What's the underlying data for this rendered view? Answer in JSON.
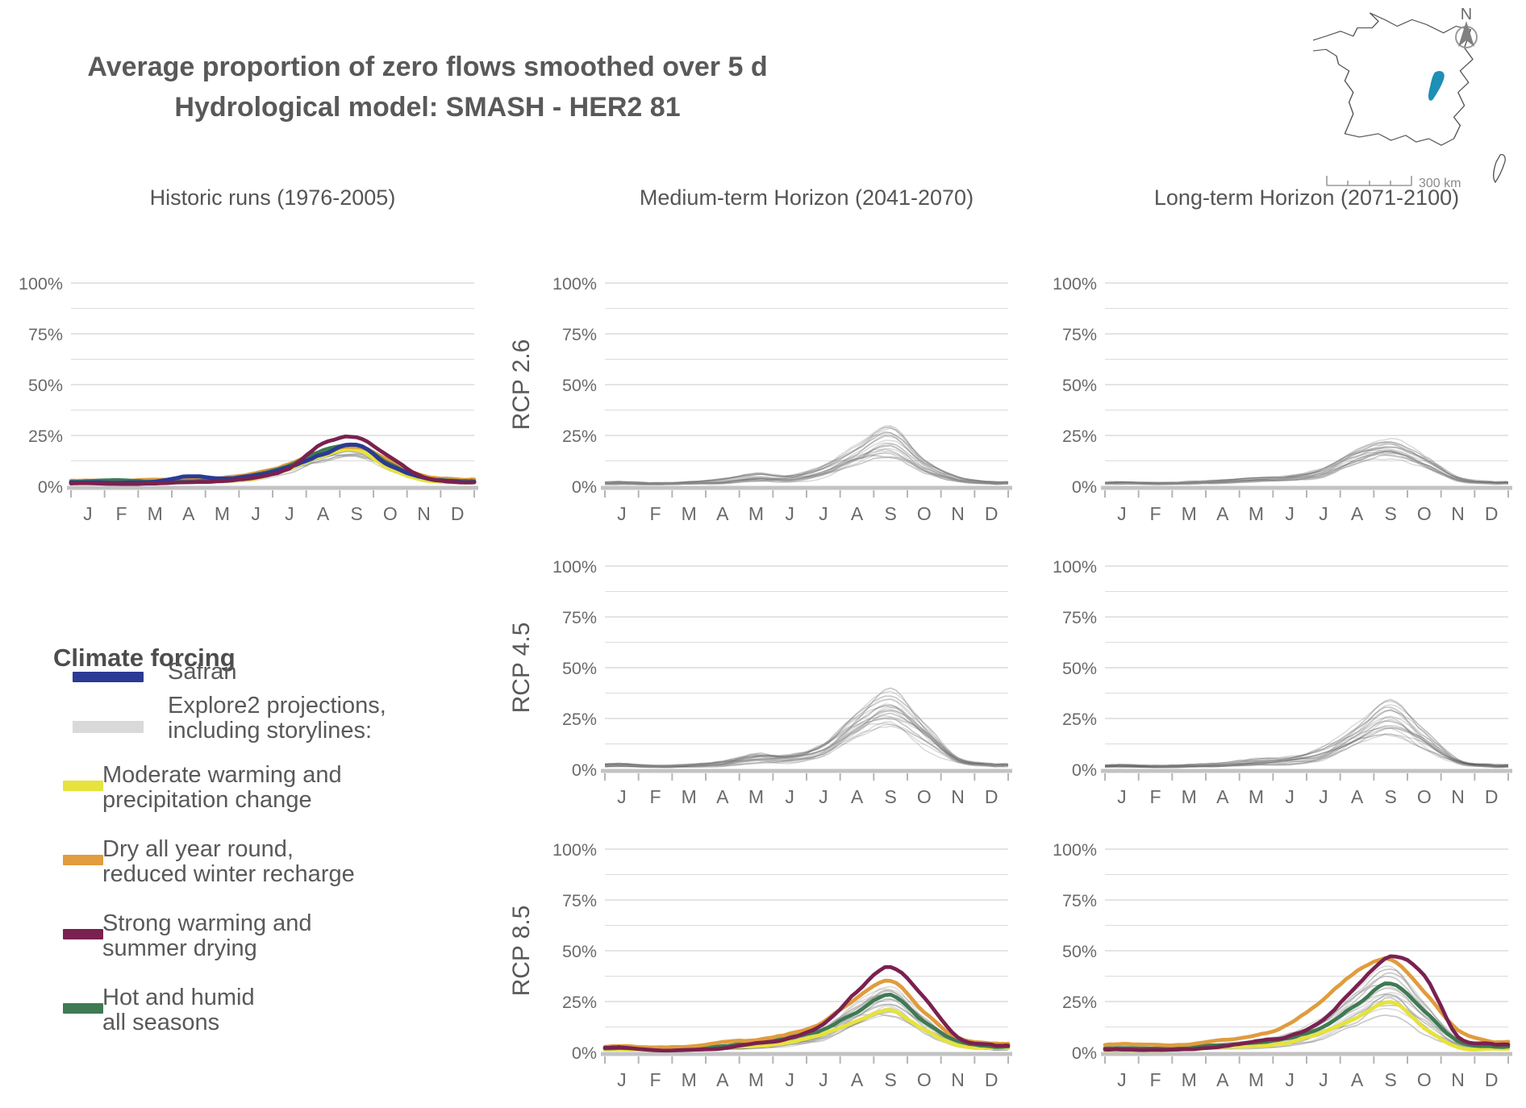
{
  "title": {
    "line1": "Average proportion of zero flows smoothed over 5 d",
    "line2": "Hydrological model: SMASH - HER2 81"
  },
  "map": {
    "north_label": "N",
    "scale_label": "300 km",
    "region_color": "#1e8fb5",
    "outline_color": "#555555"
  },
  "columns": [
    {
      "title": "Historic runs (1976-2005)"
    },
    {
      "title": "Medium-term Horizon (2041-2070)"
    },
    {
      "title": "Long-term Horizon (2071-2100)"
    }
  ],
  "rows": [
    "RCP 2.6",
    "RCP 4.5",
    "RCP 8.5"
  ],
  "legend": {
    "title": "Climate forcing",
    "items": [
      {
        "key": "safran",
        "label_line1": "Safran",
        "label_line2": "",
        "color": "#2b3a94"
      },
      {
        "key": "explore2",
        "label_line1": "Explore2 projections,",
        "label_line2": "including storylines:",
        "color": "#d9d9d9"
      },
      {
        "key": "yellow",
        "label_line1": "Moderate warming and",
        "label_line2": "precipitation change",
        "color": "#e6e33c"
      },
      {
        "key": "orange",
        "label_line1": "Dry all year round,",
        "label_line2": "reduced winter recharge",
        "color": "#e09c3d"
      },
      {
        "key": "maroon",
        "label_line1": "Strong warming and",
        "label_line2": "summer drying",
        "color": "#7a2150"
      },
      {
        "key": "green",
        "label_line1": "Hot and humid",
        "label_line2": "all seasons",
        "color": "#3f7a52"
      }
    ]
  },
  "axis": {
    "months": [
      "J",
      "F",
      "M",
      "A",
      "M",
      "J",
      "J",
      "A",
      "S",
      "O",
      "N",
      "D"
    ],
    "y_ticks": [
      {
        "v": 100,
        "label": "100%"
      },
      {
        "v": 75,
        "label": "75%"
      },
      {
        "v": 50,
        "label": "50%"
      },
      {
        "v": 25,
        "label": "25%"
      },
      {
        "v": 0,
        "label": "0%"
      }
    ],
    "ylim": [
      0,
      105
    ],
    "unit": "%"
  },
  "chart_data": [
    {
      "id": "historic",
      "type": "line",
      "col": 0,
      "row": 0,
      "row_label": "",
      "ensemble": {
        "count": 16,
        "min": [
          1,
          0.8,
          1,
          1.2,
          1.5,
          2.5,
          6,
          11,
          13,
          7,
          2.5,
          1.2
        ],
        "max": [
          3,
          2.5,
          3,
          4,
          5,
          7,
          12,
          18,
          21,
          13,
          5.5,
          3
        ]
      },
      "series": [
        {
          "name": "Moderate warming and precipitation change",
          "key": "yellow",
          "values": [
            1.8,
            1.5,
            1.6,
            2,
            2.5,
            4,
            8.5,
            15,
            18,
            8.5,
            3,
            2
          ]
        },
        {
          "name": "Dry all year round, reduced winter recharge",
          "key": "orange",
          "values": [
            3,
            2.8,
            3.2,
            3.2,
            4,
            6.5,
            11,
            17,
            19,
            12.5,
            5,
            3.5
          ]
        },
        {
          "name": "Hot and humid all seasons",
          "key": "green",
          "values": [
            2.5,
            3,
            2.2,
            2.6,
            3.5,
            6,
            10.5,
            17.5,
            20,
            11,
            4,
            2.6
          ]
        },
        {
          "name": "Safran",
          "key": "safran",
          "values": [
            2,
            1.7,
            2.2,
            5,
            4,
            5.5,
            9.5,
            16,
            20.5,
            10,
            4,
            2.2
          ]
        },
        {
          "name": "Strong warming and summer drying",
          "key": "maroon",
          "values": [
            1.5,
            1.2,
            1.5,
            2,
            2.5,
            4.5,
            9,
            21,
            24,
            14,
            4.5,
            2
          ]
        }
      ]
    },
    {
      "id": "med-rcp26",
      "type": "line",
      "col": 1,
      "row": 0,
      "row_label": "RCP 2.6",
      "ensemble": {
        "count": 20,
        "min": [
          0.8,
          0.6,
          0.8,
          1,
          1.5,
          2,
          4,
          10,
          13,
          6,
          2,
          1
        ],
        "max": [
          2.5,
          2,
          2.5,
          4,
          7,
          6,
          11,
          22,
          32,
          15,
          5,
          2.5
        ]
      },
      "series": []
    },
    {
      "id": "med-rcp45",
      "type": "line",
      "col": 1,
      "row": 1,
      "row_label": "RCP 4.5",
      "ensemble": {
        "count": 20,
        "min": [
          0.8,
          0.6,
          0.8,
          1,
          1.5,
          2,
          5,
          12,
          16,
          8,
          2.5,
          1
        ],
        "max": [
          3,
          2,
          2.5,
          4,
          8,
          8,
          13,
          28,
          40,
          24,
          6,
          3
        ]
      },
      "series": []
    },
    {
      "id": "med-rcp85",
      "type": "line",
      "col": 1,
      "row": 2,
      "row_label": "RCP 8.5",
      "ensemble": {
        "count": 18,
        "min": [
          0.8,
          0.6,
          0.8,
          1,
          1.5,
          2.5,
          5,
          12,
          16,
          8,
          2.5,
          1
        ],
        "max": [
          2.5,
          2,
          2.5,
          4,
          6,
          8,
          14,
          26,
          36,
          20,
          6,
          2.5
        ]
      },
      "series": [
        {
          "name": "Moderate warming and precipitation change",
          "key": "yellow",
          "values": [
            1.5,
            1.2,
            1.5,
            2.5,
            3,
            5,
            9,
            15,
            21,
            11,
            3.5,
            2.2
          ]
        },
        {
          "name": "Hot and humid all seasons",
          "key": "green",
          "values": [
            2,
            1.8,
            2,
            3,
            5,
            7,
            11,
            20,
            28,
            15,
            5.5,
            3
          ]
        },
        {
          "name": "Dry all year round, reduced winter recharge",
          "key": "orange",
          "values": [
            3,
            2.5,
            3,
            5,
            6,
            9,
            15,
            27,
            35,
            20,
            7,
            4.5
          ]
        },
        {
          "name": "Strong warming and summer drying",
          "key": "maroon",
          "values": [
            2.5,
            1,
            1.2,
            2,
            4.5,
            7,
            14,
            30,
            42,
            27,
            7,
            3.5
          ]
        }
      ]
    },
    {
      "id": "long-rcp26",
      "type": "line",
      "col": 2,
      "row": 0,
      "row_label": "",
      "ensemble": {
        "count": 20,
        "min": [
          0.8,
          0.6,
          0.8,
          1,
          1.2,
          2,
          3.5,
          9,
          12,
          7,
          2,
          1
        ],
        "max": [
          2.5,
          2,
          2.5,
          3.5,
          5,
          6,
          10,
          20,
          25,
          17,
          5,
          2.5
        ]
      },
      "series": []
    },
    {
      "id": "long-rcp45",
      "type": "line",
      "col": 2,
      "row": 1,
      "row_label": "",
      "ensemble": {
        "count": 20,
        "min": [
          0.8,
          0.6,
          0.8,
          1,
          1.5,
          2,
          4,
          11,
          15,
          8,
          2.5,
          1
        ],
        "max": [
          3,
          2.5,
          3,
          4,
          6,
          8,
          13,
          26,
          41,
          25,
          6,
          3
        ]
      },
      "series": []
    },
    {
      "id": "long-rcp85",
      "type": "line",
      "col": 2,
      "row": 2,
      "row_label": "",
      "ensemble": {
        "count": 18,
        "min": [
          1,
          0.8,
          1,
          1.2,
          1.5,
          2.5,
          5,
          12,
          16,
          8,
          2.5,
          1.2
        ],
        "max": [
          3,
          2.5,
          3,
          4.5,
          6.5,
          10,
          18,
          32,
          43,
          26,
          7,
          3
        ]
      },
      "series": [
        {
          "name": "Moderate warming and precipitation change",
          "key": "yellow",
          "values": [
            1.2,
            1,
            1.5,
            2.5,
            3,
            5,
            10,
            17,
            25,
            12,
            2.5,
            1.8
          ]
        },
        {
          "name": "Hot and humid all seasons",
          "key": "green",
          "values": [
            2.2,
            2,
            3,
            3.5,
            5,
            7.5,
            13,
            24,
            34,
            20,
            5.5,
            3
          ]
        },
        {
          "name": "Dry all year round, reduced winter recharge",
          "key": "orange",
          "values": [
            4,
            3.5,
            4,
            6,
            8,
            14,
            26,
            40,
            46,
            30,
            11,
            5.5
          ]
        },
        {
          "name": "Strong warming and summer drying",
          "key": "maroon",
          "values": [
            1.5,
            1.2,
            1.5,
            3,
            5.5,
            8,
            16,
            33,
            47,
            38,
            8,
            4
          ]
        }
      ]
    }
  ]
}
